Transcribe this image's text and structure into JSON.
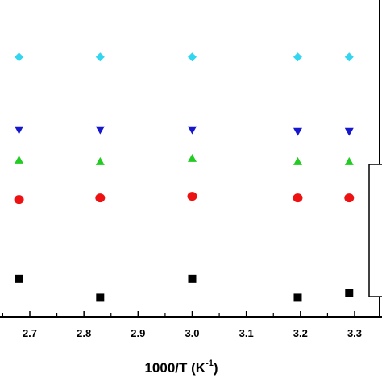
{
  "chart_data": {
    "type": "scatter",
    "title": "",
    "xlabel": "1000/T (K",
    "xlabel_superscript": "-1",
    "xlabel_close": ")",
    "ylabel": "",
    "xlim": [
      2.6,
      3.33
    ],
    "ylim": [
      0,
      10
    ],
    "x_ticks": [
      2.7,
      2.8,
      2.9,
      3.0,
      3.1,
      3.2,
      3.3
    ],
    "x_tick_labels": [
      "2.7",
      "2.8",
      "2.9",
      "3.0",
      "3.1",
      "3.2",
      "3.3"
    ],
    "grid": false,
    "series": [
      {
        "marker": "diamond",
        "color": "#33d6f0",
        "x": [
          2.68,
          2.83,
          3.0,
          3.195,
          3.29
        ],
        "y": [
          8.2,
          8.2,
          8.2,
          8.2,
          8.2
        ]
      },
      {
        "marker": "triangle-down",
        "color": "#1616cc",
        "x": [
          2.68,
          2.83,
          3.0,
          3.195,
          3.29
        ],
        "y": [
          5.9,
          5.9,
          5.9,
          5.85,
          5.85
        ]
      },
      {
        "marker": "triangle-up",
        "color": "#22cc22",
        "x": [
          2.68,
          2.83,
          3.0,
          3.195,
          3.29
        ],
        "y": [
          4.95,
          4.9,
          5.0,
          4.9,
          4.9
        ]
      },
      {
        "marker": "circle",
        "color": "#ee1111",
        "x": [
          2.68,
          2.83,
          3.0,
          3.195,
          3.29
        ],
        "y": [
          3.7,
          3.75,
          3.8,
          3.75,
          3.75
        ]
      },
      {
        "marker": "square",
        "color": "#000000",
        "x": [
          2.68,
          2.83,
          3.0,
          3.195,
          3.29
        ],
        "y": [
          1.2,
          0.6,
          1.2,
          0.6,
          0.75
        ]
      }
    ]
  }
}
